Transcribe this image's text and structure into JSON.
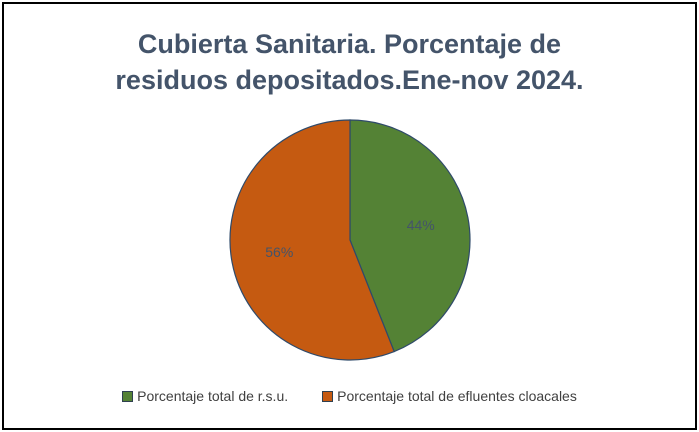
{
  "chart_data": {
    "type": "pie",
    "title_lines": [
      "Cubierta Sanitaria. Porcentaje de",
      "residuos depositados.Ene-nov 2024."
    ],
    "slices": [
      {
        "name": "Porcentaje total de r.s.u.",
        "value": 44,
        "label": "44%",
        "color": "#548235"
      },
      {
        "name": "Porcentaje total de efluentes cloacales",
        "value": 56,
        "label": "56%",
        "color": "#c55a11"
      }
    ],
    "start_angle_deg": 0,
    "direction": "clockwise",
    "legend_position": "bottom"
  }
}
